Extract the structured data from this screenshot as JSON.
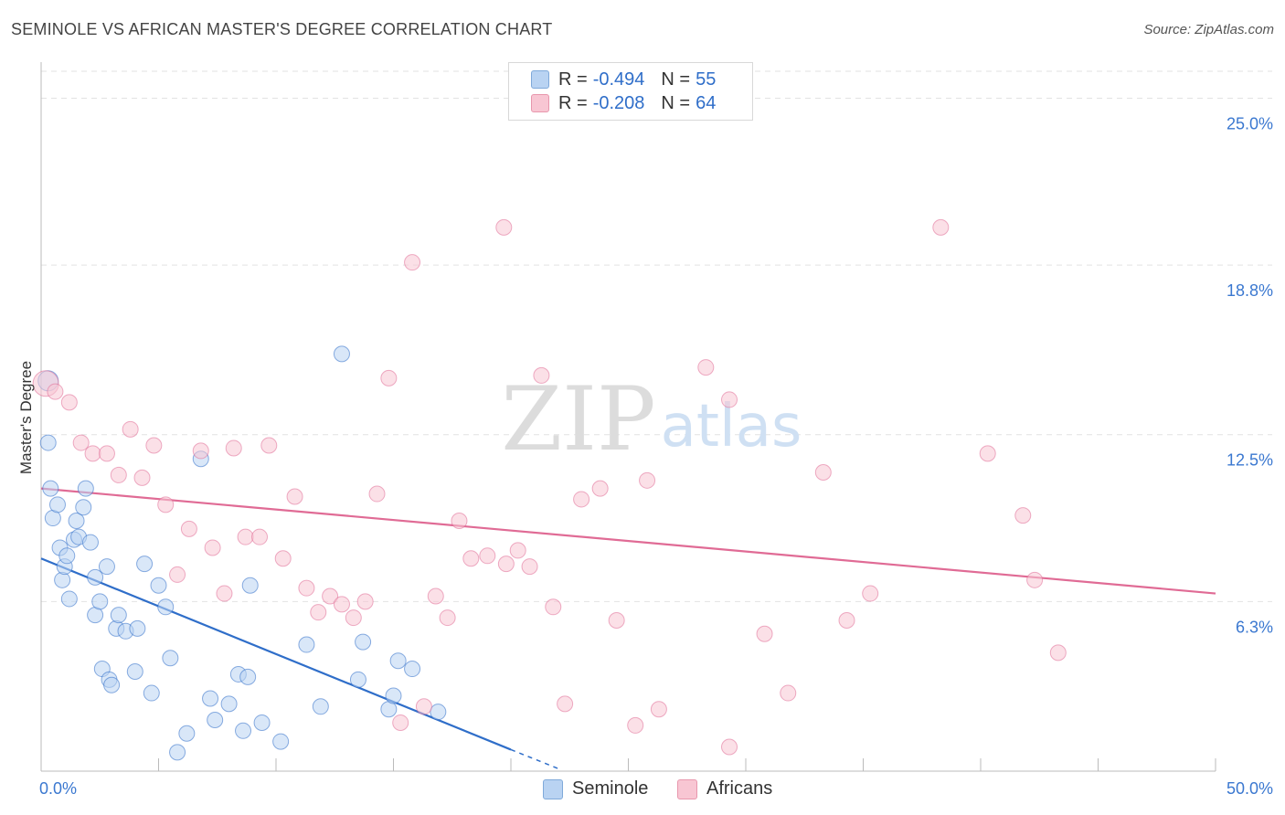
{
  "header": {
    "title": "SEMINOLE VS AFRICAN MASTER'S DEGREE CORRELATION CHART",
    "source": "Source: ZipAtlas.com"
  },
  "watermark": {
    "zip": "ZIP",
    "atlas": "atlas"
  },
  "legend_top": {
    "series1": {
      "r_label": "R =",
      "r_value": "-0.494",
      "n_label": "N =",
      "n_value": "55"
    },
    "series2": {
      "r_label": "R =",
      "r_value": "-0.208",
      "n_label": "N =",
      "n_value": "64"
    }
  },
  "legend_bottom": {
    "series1": "Seminole",
    "series2": "Africans"
  },
  "colors": {
    "blue": "#2f6ec9",
    "blue_fill": "#b9d3f2",
    "pink": "#e06b95",
    "pink_fill": "#f8c6d3",
    "grid": "#e2e2e2",
    "tick_text": "#3b78d0"
  },
  "chart_data": {
    "type": "scatter",
    "title": "SEMINOLE VS AFRICAN MASTER'S DEGREE CORRELATION CHART",
    "xlabel": "",
    "ylabel": "Master's Degree",
    "xlim": [
      0,
      50
    ],
    "ylim": [
      0,
      26
    ],
    "x_tick_labels": [
      "0.0%",
      "50.0%"
    ],
    "y_ticks": [
      6.3,
      12.5,
      18.8,
      25.0
    ],
    "y_tick_labels": [
      "6.3%",
      "12.5%",
      "18.8%",
      "25.0%"
    ],
    "grid": true,
    "series": [
      {
        "name": "Seminole",
        "color": "#2f6ec9",
        "r": -0.494,
        "n": 55,
        "trend": {
          "x": [
            0,
            20
          ],
          "y": [
            7.9,
            0.8
          ],
          "dashed_to": [
            22,
            0.1
          ]
        },
        "points": [
          [
            0.3,
            14.5
          ],
          [
            0.3,
            12.2
          ],
          [
            0.4,
            10.5
          ],
          [
            0.5,
            9.4
          ],
          [
            0.7,
            9.9
          ],
          [
            0.8,
            8.3
          ],
          [
            0.9,
            7.1
          ],
          [
            1.0,
            7.6
          ],
          [
            1.1,
            8.0
          ],
          [
            1.2,
            6.4
          ],
          [
            1.4,
            8.6
          ],
          [
            1.5,
            9.3
          ],
          [
            1.6,
            8.7
          ],
          [
            1.8,
            9.8
          ],
          [
            1.9,
            10.5
          ],
          [
            2.1,
            8.5
          ],
          [
            2.3,
            5.8
          ],
          [
            2.3,
            7.2
          ],
          [
            2.5,
            6.3
          ],
          [
            2.6,
            3.8
          ],
          [
            2.8,
            7.6
          ],
          [
            2.9,
            3.4
          ],
          [
            3.0,
            3.2
          ],
          [
            3.2,
            5.3
          ],
          [
            3.3,
            5.8
          ],
          [
            3.6,
            5.2
          ],
          [
            4.0,
            3.7
          ],
          [
            4.1,
            5.3
          ],
          [
            4.4,
            7.7
          ],
          [
            4.7,
            2.9
          ],
          [
            5.0,
            6.9
          ],
          [
            5.3,
            6.1
          ],
          [
            5.5,
            4.2
          ],
          [
            5.8,
            0.7
          ],
          [
            6.2,
            1.4
          ],
          [
            6.8,
            11.6
          ],
          [
            7.2,
            2.7
          ],
          [
            7.4,
            1.9
          ],
          [
            8.0,
            2.5
          ],
          [
            8.4,
            3.6
          ],
          [
            8.6,
            1.5
          ],
          [
            8.8,
            3.5
          ],
          [
            8.9,
            6.9
          ],
          [
            9.4,
            1.8
          ],
          [
            10.2,
            1.1
          ],
          [
            11.3,
            4.7
          ],
          [
            11.9,
            2.4
          ],
          [
            12.8,
            15.5
          ],
          [
            13.5,
            3.4
          ],
          [
            13.7,
            4.8
          ],
          [
            14.8,
            2.3
          ],
          [
            15.0,
            2.8
          ],
          [
            15.2,
            4.1
          ],
          [
            15.8,
            3.8
          ],
          [
            16.9,
            2.2
          ]
        ]
      },
      {
        "name": "Africans",
        "color": "#e06b95",
        "r": -0.208,
        "n": 64,
        "trend": {
          "x": [
            0,
            50
          ],
          "y": [
            10.5,
            6.6
          ]
        },
        "points": [
          [
            0.2,
            14.4
          ],
          [
            0.6,
            14.1
          ],
          [
            1.2,
            13.7
          ],
          [
            1.7,
            12.2
          ],
          [
            2.2,
            11.8
          ],
          [
            2.8,
            11.8
          ],
          [
            3.3,
            11.0
          ],
          [
            3.8,
            12.7
          ],
          [
            4.3,
            10.9
          ],
          [
            4.8,
            12.1
          ],
          [
            5.3,
            9.9
          ],
          [
            5.8,
            7.3
          ],
          [
            6.3,
            9.0
          ],
          [
            6.8,
            11.9
          ],
          [
            7.3,
            8.3
          ],
          [
            7.8,
            6.6
          ],
          [
            8.2,
            12.0
          ],
          [
            8.7,
            8.7
          ],
          [
            9.3,
            8.7
          ],
          [
            9.7,
            12.1
          ],
          [
            10.3,
            7.9
          ],
          [
            10.8,
            10.2
          ],
          [
            11.3,
            6.8
          ],
          [
            11.8,
            5.9
          ],
          [
            12.3,
            6.5
          ],
          [
            12.8,
            6.2
          ],
          [
            13.3,
            5.7
          ],
          [
            13.8,
            6.3
          ],
          [
            14.3,
            10.3
          ],
          [
            14.8,
            14.6
          ],
          [
            15.3,
            1.8
          ],
          [
            15.8,
            18.9
          ],
          [
            16.3,
            2.4
          ],
          [
            16.8,
            6.5
          ],
          [
            17.3,
            5.7
          ],
          [
            17.8,
            9.3
          ],
          [
            18.3,
            7.9
          ],
          [
            19.0,
            8.0
          ],
          [
            19.7,
            20.2
          ],
          [
            19.8,
            7.7
          ],
          [
            20.3,
            8.2
          ],
          [
            20.8,
            7.6
          ],
          [
            21.3,
            14.7
          ],
          [
            21.8,
            6.1
          ],
          [
            22.3,
            2.5
          ],
          [
            23.0,
            10.1
          ],
          [
            23.8,
            10.5
          ],
          [
            24.5,
            5.6
          ],
          [
            25.3,
            1.7
          ],
          [
            25.8,
            10.8
          ],
          [
            26.3,
            2.3
          ],
          [
            28.3,
            15.0
          ],
          [
            29.3,
            13.8
          ],
          [
            29.3,
            0.9
          ],
          [
            30.8,
            5.1
          ],
          [
            31.8,
            2.9
          ],
          [
            33.3,
            11.1
          ],
          [
            34.3,
            5.6
          ],
          [
            35.3,
            6.6
          ],
          [
            38.3,
            20.2
          ],
          [
            40.3,
            11.8
          ],
          [
            41.8,
            9.5
          ],
          [
            42.3,
            7.1
          ],
          [
            43.3,
            4.4
          ]
        ]
      }
    ]
  }
}
